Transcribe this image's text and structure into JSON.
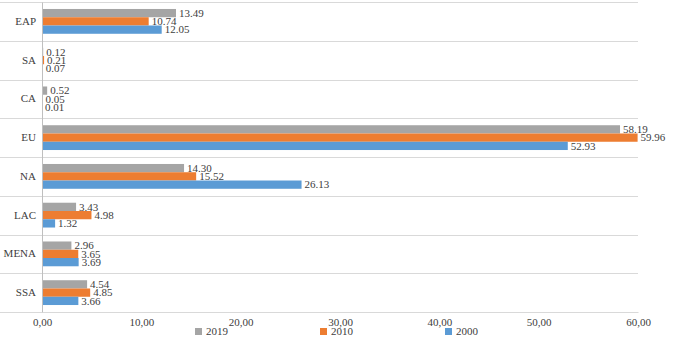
{
  "chart_data": {
    "type": "bar",
    "orientation": "horizontal",
    "categories": [
      "EAP",
      "SA",
      "CA",
      "EU",
      "NA",
      "LAC",
      "MENA",
      "SSA"
    ],
    "series": [
      {
        "name": "2019",
        "color": "#a5a5a5",
        "values": [
          13.49,
          0.12,
          0.52,
          58.19,
          14.3,
          3.43,
          2.96,
          4.54
        ],
        "value_labels": [
          "13.49",
          "0.12",
          "0.52",
          "58.19",
          "14.30",
          "3.43",
          "2.96",
          "4.54"
        ]
      },
      {
        "name": "2010",
        "color": "#ed7d31",
        "values": [
          10.74,
          0.21,
          0.05,
          59.96,
          15.52,
          4.98,
          3.65,
          4.85
        ],
        "value_labels": [
          "10.74",
          "0.21",
          "0.05",
          "59.96",
          "15.52",
          "4.98",
          "3.65",
          "4.85"
        ]
      },
      {
        "name": "2000",
        "color": "#5b9bd5",
        "values": [
          12.05,
          0.07,
          0.01,
          52.93,
          26.13,
          1.32,
          3.69,
          3.66
        ],
        "value_labels": [
          "12.05",
          "0.07",
          "0.01",
          "52.93",
          "26.13",
          "1.32",
          "3.69",
          "3.66"
        ]
      }
    ],
    "xlim": [
      0,
      60
    ],
    "xticks": [
      {
        "value": 0,
        "label": "0,00"
      },
      {
        "value": 10,
        "label": "10,00"
      },
      {
        "value": 20,
        "label": "20,00"
      },
      {
        "value": 30,
        "label": "30,00"
      },
      {
        "value": 40,
        "label": "40,00"
      },
      {
        "value": 50,
        "label": "50,00"
      },
      {
        "value": 60,
        "label": "60,00"
      }
    ],
    "grid": false,
    "data_labels": true,
    "legend": "bottom"
  }
}
